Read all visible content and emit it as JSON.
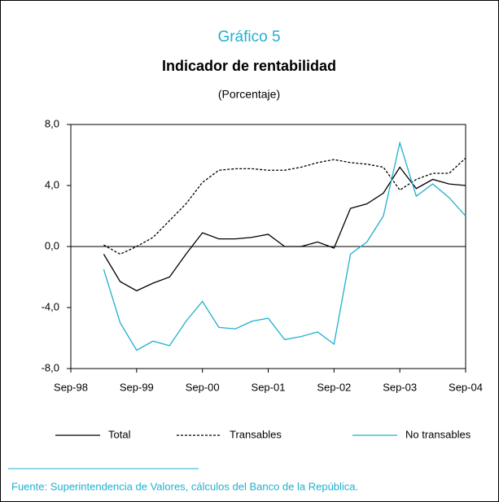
{
  "chart_data": {
    "type": "line",
    "title": "Indicador de rentabilidad",
    "supertitle": "Gráfico 5",
    "subtitle": "(Porcentaje)",
    "source": "Fuente: Superintendencia de Valores, cálculos del Banco de la República.",
    "categories": [
      "Sep-98",
      null,
      null,
      null,
      "Sep-99",
      null,
      null,
      null,
      "Sep-00",
      null,
      null,
      null,
      "Sep-01",
      null,
      null,
      null,
      "Sep-02",
      null,
      null,
      null,
      "Sep-03",
      null,
      null,
      null,
      "Sep-04"
    ],
    "series": [
      {
        "name": "Total",
        "color": "#000000",
        "dash": "solid",
        "values": [
          null,
          null,
          -0.5,
          -2.3,
          -2.9,
          -2.4,
          -2.0,
          -0.5,
          0.9,
          0.5,
          0.5,
          0.6,
          0.8,
          0.0,
          0.0,
          0.3,
          -0.1,
          2.5,
          2.8,
          3.5,
          5.2,
          3.8,
          4.4,
          4.1,
          4.0
        ]
      },
      {
        "name": "Transables",
        "color": "#000000",
        "dash": "dashed",
        "values": [
          null,
          null,
          0.1,
          -0.5,
          0.0,
          0.6,
          1.7,
          2.8,
          4.2,
          5.0,
          5.1,
          5.1,
          5.0,
          5.0,
          5.2,
          5.5,
          5.7,
          5.5,
          5.4,
          5.2,
          3.7,
          4.4,
          4.8,
          4.8,
          5.8
        ]
      },
      {
        "name": "No transables",
        "color": "#1fb0d0",
        "dash": "solid",
        "values": [
          null,
          null,
          -1.5,
          -5.0,
          -6.8,
          -6.2,
          -6.5,
          -4.9,
          -3.6,
          -5.3,
          -5.4,
          -4.9,
          -4.7,
          -6.1,
          -5.9,
          -5.6,
          -6.4,
          -0.5,
          0.3,
          2.0,
          6.8,
          3.3,
          4.1,
          3.2,
          2.0
        ]
      }
    ],
    "ylim": [
      -8,
      8
    ],
    "yticks": [
      {
        "value": -8,
        "label": "-8,0"
      },
      {
        "value": -4,
        "label": "-4,0"
      },
      {
        "value": 0,
        "label": "0,0"
      },
      {
        "value": 4,
        "label": "4,0"
      },
      {
        "value": 8,
        "label": "8,0"
      }
    ],
    "legend": "bottom"
  }
}
